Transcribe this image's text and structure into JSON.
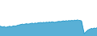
{
  "chart_data": {
    "type": "area",
    "values": [
      55,
      52,
      50,
      53,
      48,
      50,
      52,
      54,
      51,
      55,
      56,
      54,
      58,
      60,
      62,
      64,
      66,
      64,
      67,
      68,
      66,
      68,
      70,
      71,
      69,
      72,
      70,
      73,
      74,
      75,
      73,
      76,
      74,
      77,
      75,
      78,
      76,
      79,
      77,
      76,
      78,
      80,
      81,
      80,
      82,
      84,
      82,
      85,
      83,
      86,
      84,
      87,
      85,
      88,
      86,
      89,
      87,
      86,
      84,
      45,
      12,
      22,
      30,
      35,
      38,
      42,
      40,
      44,
      42,
      46
    ],
    "color": "#2196c8",
    "xlim": [
      0,
      69
    ],
    "ylim": [
      0,
      200
    ],
    "grid": false,
    "tick_labels": false
  }
}
